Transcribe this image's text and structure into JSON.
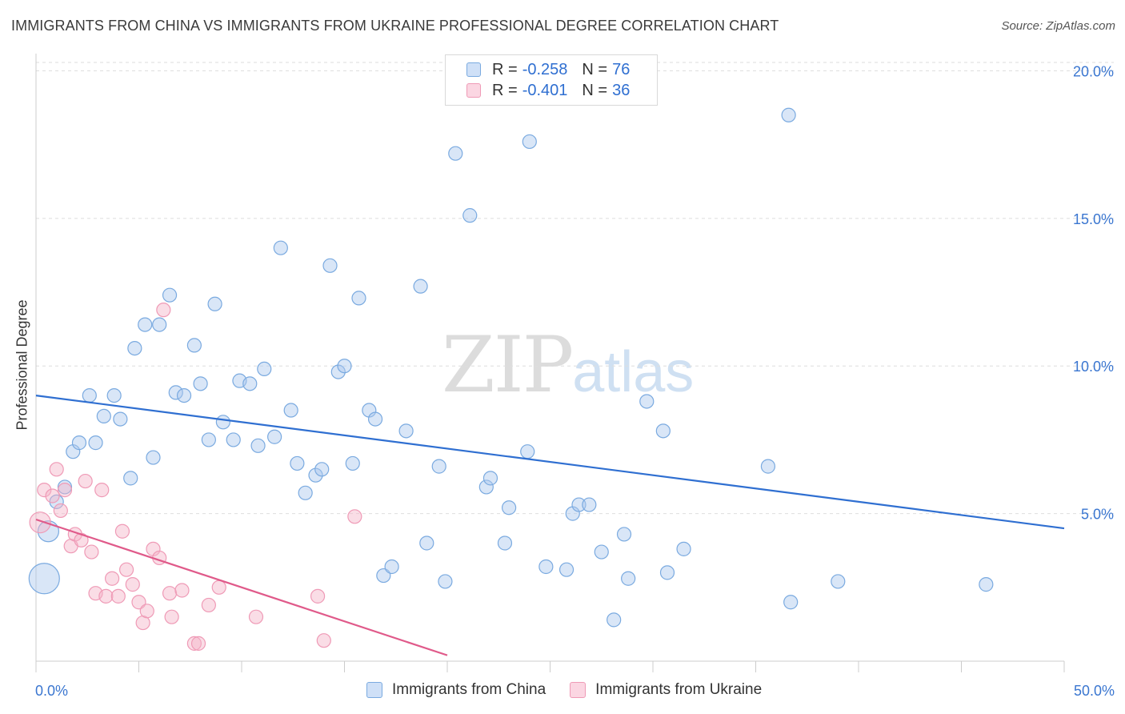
{
  "header": {
    "title": "IMMIGRANTS FROM CHINA VS IMMIGRANTS FROM UKRAINE PROFESSIONAL DEGREE CORRELATION CHART",
    "source": "Source: ZipAtlas.com"
  },
  "watermark": {
    "zip": "ZIP",
    "atlas": "atlas"
  },
  "legend_top": {
    "rows": [
      {
        "r_label": "R =",
        "r_value": "-0.258",
        "n_label": "N =",
        "n_value": "76",
        "color": "#a9c8ef"
      },
      {
        "r_label": "R =",
        "r_value": "-0.401",
        "n_label": "N =",
        "n_value": "36",
        "color": "#f5b3c8"
      }
    ]
  },
  "legend_bottom": {
    "items": [
      {
        "label": "Immigrants from China",
        "color": "#a9c8ef"
      },
      {
        "label": "Immigrants from Ukraine",
        "color": "#f5b3c8"
      }
    ]
  },
  "colors": {
    "china_fill": "rgba(170,200,238,0.45)",
    "china_stroke": "#7aaae0",
    "china_line": "#2f6fd1",
    "ukraine_fill": "rgba(245,180,200,0.45)",
    "ukraine_stroke": "#ef9ab6",
    "ukraine_line": "#e05a8a",
    "tick_label": "#3a76d0",
    "grid": "#dedede"
  },
  "chart_data": {
    "type": "scatter",
    "title": "IMMIGRANTS FROM CHINA VS IMMIGRANTS FROM UKRAINE PROFESSIONAL DEGREE CORRELATION CHART",
    "xlabel": "",
    "ylabel": "Professional Degree",
    "xlim": [
      0,
      50
    ],
    "ylim": [
      0,
      20.5
    ],
    "x_tick_labels": [
      "0.0%",
      "50.0%"
    ],
    "y_ticks": [
      5,
      10,
      15,
      20
    ],
    "y_tick_labels": [
      "5.0%",
      "10.0%",
      "15.0%",
      "20.0%"
    ],
    "grid": true,
    "legend_position": "bottom",
    "series": [
      {
        "name": "Immigrants from China",
        "color": "#a9c8ef",
        "trend": {
          "x": [
            0,
            50
          ],
          "y": [
            9.0,
            4.5
          ]
        },
        "points": [
          {
            "x": 0.4,
            "y": 2.8,
            "s": 3
          },
          {
            "x": 0.6,
            "y": 4.4,
            "s": 2
          },
          {
            "x": 1.0,
            "y": 5.4,
            "s": 1
          },
          {
            "x": 1.4,
            "y": 5.9,
            "s": 1
          },
          {
            "x": 1.8,
            "y": 7.1,
            "s": 1
          },
          {
            "x": 2.1,
            "y": 7.4,
            "s": 1
          },
          {
            "x": 2.6,
            "y": 9.0,
            "s": 1
          },
          {
            "x": 2.9,
            "y": 7.4,
            "s": 1
          },
          {
            "x": 3.3,
            "y": 8.3,
            "s": 1
          },
          {
            "x": 3.8,
            "y": 9.0,
            "s": 1
          },
          {
            "x": 4.1,
            "y": 8.2,
            "s": 1
          },
          {
            "x": 4.6,
            "y": 6.2,
            "s": 1
          },
          {
            "x": 4.8,
            "y": 10.6,
            "s": 1
          },
          {
            "x": 5.3,
            "y": 11.4,
            "s": 1
          },
          {
            "x": 5.7,
            "y": 6.9,
            "s": 1
          },
          {
            "x": 6.0,
            "y": 11.4,
            "s": 1
          },
          {
            "x": 6.5,
            "y": 12.4,
            "s": 1
          },
          {
            "x": 6.8,
            "y": 9.1,
            "s": 1
          },
          {
            "x": 7.2,
            "y": 9.0,
            "s": 1
          },
          {
            "x": 7.7,
            "y": 10.7,
            "s": 1
          },
          {
            "x": 8.0,
            "y": 9.4,
            "s": 1
          },
          {
            "x": 8.4,
            "y": 7.5,
            "s": 1
          },
          {
            "x": 8.7,
            "y": 12.1,
            "s": 1
          },
          {
            "x": 9.1,
            "y": 8.1,
            "s": 1
          },
          {
            "x": 9.6,
            "y": 7.5,
            "s": 1
          },
          {
            "x": 9.9,
            "y": 9.5,
            "s": 1
          },
          {
            "x": 10.4,
            "y": 9.4,
            "s": 1
          },
          {
            "x": 10.8,
            "y": 7.3,
            "s": 1
          },
          {
            "x": 11.1,
            "y": 9.9,
            "s": 1
          },
          {
            "x": 11.6,
            "y": 7.6,
            "s": 1
          },
          {
            "x": 11.9,
            "y": 14.0,
            "s": 1
          },
          {
            "x": 12.4,
            "y": 8.5,
            "s": 1
          },
          {
            "x": 12.7,
            "y": 6.7,
            "s": 1
          },
          {
            "x": 13.1,
            "y": 5.7,
            "s": 1
          },
          {
            "x": 13.6,
            "y": 6.3,
            "s": 1
          },
          {
            "x": 13.9,
            "y": 6.5,
            "s": 1
          },
          {
            "x": 14.3,
            "y": 13.4,
            "s": 1
          },
          {
            "x": 14.7,
            "y": 9.8,
            "s": 1
          },
          {
            "x": 15.0,
            "y": 10.0,
            "s": 1
          },
          {
            "x": 15.4,
            "y": 6.7,
            "s": 1
          },
          {
            "x": 15.7,
            "y": 12.3,
            "s": 1
          },
          {
            "x": 16.2,
            "y": 8.5,
            "s": 1
          },
          {
            "x": 16.5,
            "y": 8.2,
            "s": 1
          },
          {
            "x": 16.9,
            "y": 2.9,
            "s": 1
          },
          {
            "x": 17.3,
            "y": 3.2,
            "s": 1
          },
          {
            "x": 18.0,
            "y": 7.8,
            "s": 1
          },
          {
            "x": 18.7,
            "y": 12.7,
            "s": 1
          },
          {
            "x": 19.0,
            "y": 4.0,
            "s": 1
          },
          {
            "x": 19.6,
            "y": 6.6,
            "s": 1
          },
          {
            "x": 19.9,
            "y": 2.7,
            "s": 1
          },
          {
            "x": 20.4,
            "y": 17.2,
            "s": 1
          },
          {
            "x": 21.1,
            "y": 15.1,
            "s": 1
          },
          {
            "x": 21.9,
            "y": 5.9,
            "s": 1
          },
          {
            "x": 22.1,
            "y": 6.2,
            "s": 1
          },
          {
            "x": 22.8,
            "y": 4.0,
            "s": 1
          },
          {
            "x": 23.0,
            "y": 5.2,
            "s": 1
          },
          {
            "x": 23.9,
            "y": 7.1,
            "s": 1
          },
          {
            "x": 24.0,
            "y": 17.6,
            "s": 1
          },
          {
            "x": 24.8,
            "y": 3.2,
            "s": 1
          },
          {
            "x": 25.8,
            "y": 3.1,
            "s": 1
          },
          {
            "x": 26.1,
            "y": 5.0,
            "s": 1
          },
          {
            "x": 26.4,
            "y": 5.3,
            "s": 1
          },
          {
            "x": 26.9,
            "y": 5.3,
            "s": 1
          },
          {
            "x": 27.5,
            "y": 3.7,
            "s": 1
          },
          {
            "x": 28.1,
            "y": 1.4,
            "s": 1
          },
          {
            "x": 28.6,
            "y": 4.3,
            "s": 1
          },
          {
            "x": 28.8,
            "y": 2.8,
            "s": 1
          },
          {
            "x": 29.7,
            "y": 8.8,
            "s": 1
          },
          {
            "x": 30.5,
            "y": 7.8,
            "s": 1
          },
          {
            "x": 30.7,
            "y": 3.0,
            "s": 1
          },
          {
            "x": 31.5,
            "y": 3.8,
            "s": 1
          },
          {
            "x": 35.6,
            "y": 6.6,
            "s": 1
          },
          {
            "x": 36.7,
            "y": 2.0,
            "s": 1
          },
          {
            "x": 36.6,
            "y": 18.5,
            "s": 1
          },
          {
            "x": 39.0,
            "y": 2.7,
            "s": 1
          },
          {
            "x": 46.2,
            "y": 2.6,
            "s": 1
          }
        ]
      },
      {
        "name": "Immigrants from Ukraine",
        "color": "#f5b3c8",
        "trend": {
          "x": [
            0,
            20.0
          ],
          "y": [
            4.8,
            0.2
          ]
        },
        "points": [
          {
            "x": 0.2,
            "y": 4.7,
            "s": 2
          },
          {
            "x": 0.4,
            "y": 5.8,
            "s": 1
          },
          {
            "x": 0.8,
            "y": 5.6,
            "s": 1
          },
          {
            "x": 1.0,
            "y": 6.5,
            "s": 1
          },
          {
            "x": 1.2,
            "y": 5.1,
            "s": 1
          },
          {
            "x": 1.4,
            "y": 5.8,
            "s": 1
          },
          {
            "x": 1.7,
            "y": 3.9,
            "s": 1
          },
          {
            "x": 1.9,
            "y": 4.3,
            "s": 1
          },
          {
            "x": 2.2,
            "y": 4.1,
            "s": 1
          },
          {
            "x": 2.4,
            "y": 6.1,
            "s": 1
          },
          {
            "x": 2.7,
            "y": 3.7,
            "s": 1
          },
          {
            "x": 2.9,
            "y": 2.3,
            "s": 1
          },
          {
            "x": 3.2,
            "y": 5.8,
            "s": 1
          },
          {
            "x": 3.4,
            "y": 2.2,
            "s": 1
          },
          {
            "x": 3.7,
            "y": 2.8,
            "s": 1
          },
          {
            "x": 4.0,
            "y": 2.2,
            "s": 1
          },
          {
            "x": 4.2,
            "y": 4.4,
            "s": 1
          },
          {
            "x": 4.4,
            "y": 3.1,
            "s": 1
          },
          {
            "x": 4.7,
            "y": 2.6,
            "s": 1
          },
          {
            "x": 5.0,
            "y": 2.0,
            "s": 1
          },
          {
            "x": 5.2,
            "y": 1.3,
            "s": 1
          },
          {
            "x": 5.4,
            "y": 1.7,
            "s": 1
          },
          {
            "x": 5.7,
            "y": 3.8,
            "s": 1
          },
          {
            "x": 6.0,
            "y": 3.5,
            "s": 1
          },
          {
            "x": 6.2,
            "y": 11.9,
            "s": 1
          },
          {
            "x": 6.5,
            "y": 2.3,
            "s": 1
          },
          {
            "x": 6.6,
            "y": 1.5,
            "s": 1
          },
          {
            "x": 7.1,
            "y": 2.4,
            "s": 1
          },
          {
            "x": 7.7,
            "y": 0.6,
            "s": 1
          },
          {
            "x": 7.9,
            "y": 0.6,
            "s": 1
          },
          {
            "x": 8.4,
            "y": 1.9,
            "s": 1
          },
          {
            "x": 8.9,
            "y": 2.5,
            "s": 1
          },
          {
            "x": 10.7,
            "y": 1.5,
            "s": 1
          },
          {
            "x": 13.7,
            "y": 2.2,
            "s": 1
          },
          {
            "x": 14.0,
            "y": 0.7,
            "s": 1
          },
          {
            "x": 15.5,
            "y": 4.9,
            "s": 1
          }
        ]
      }
    ]
  }
}
